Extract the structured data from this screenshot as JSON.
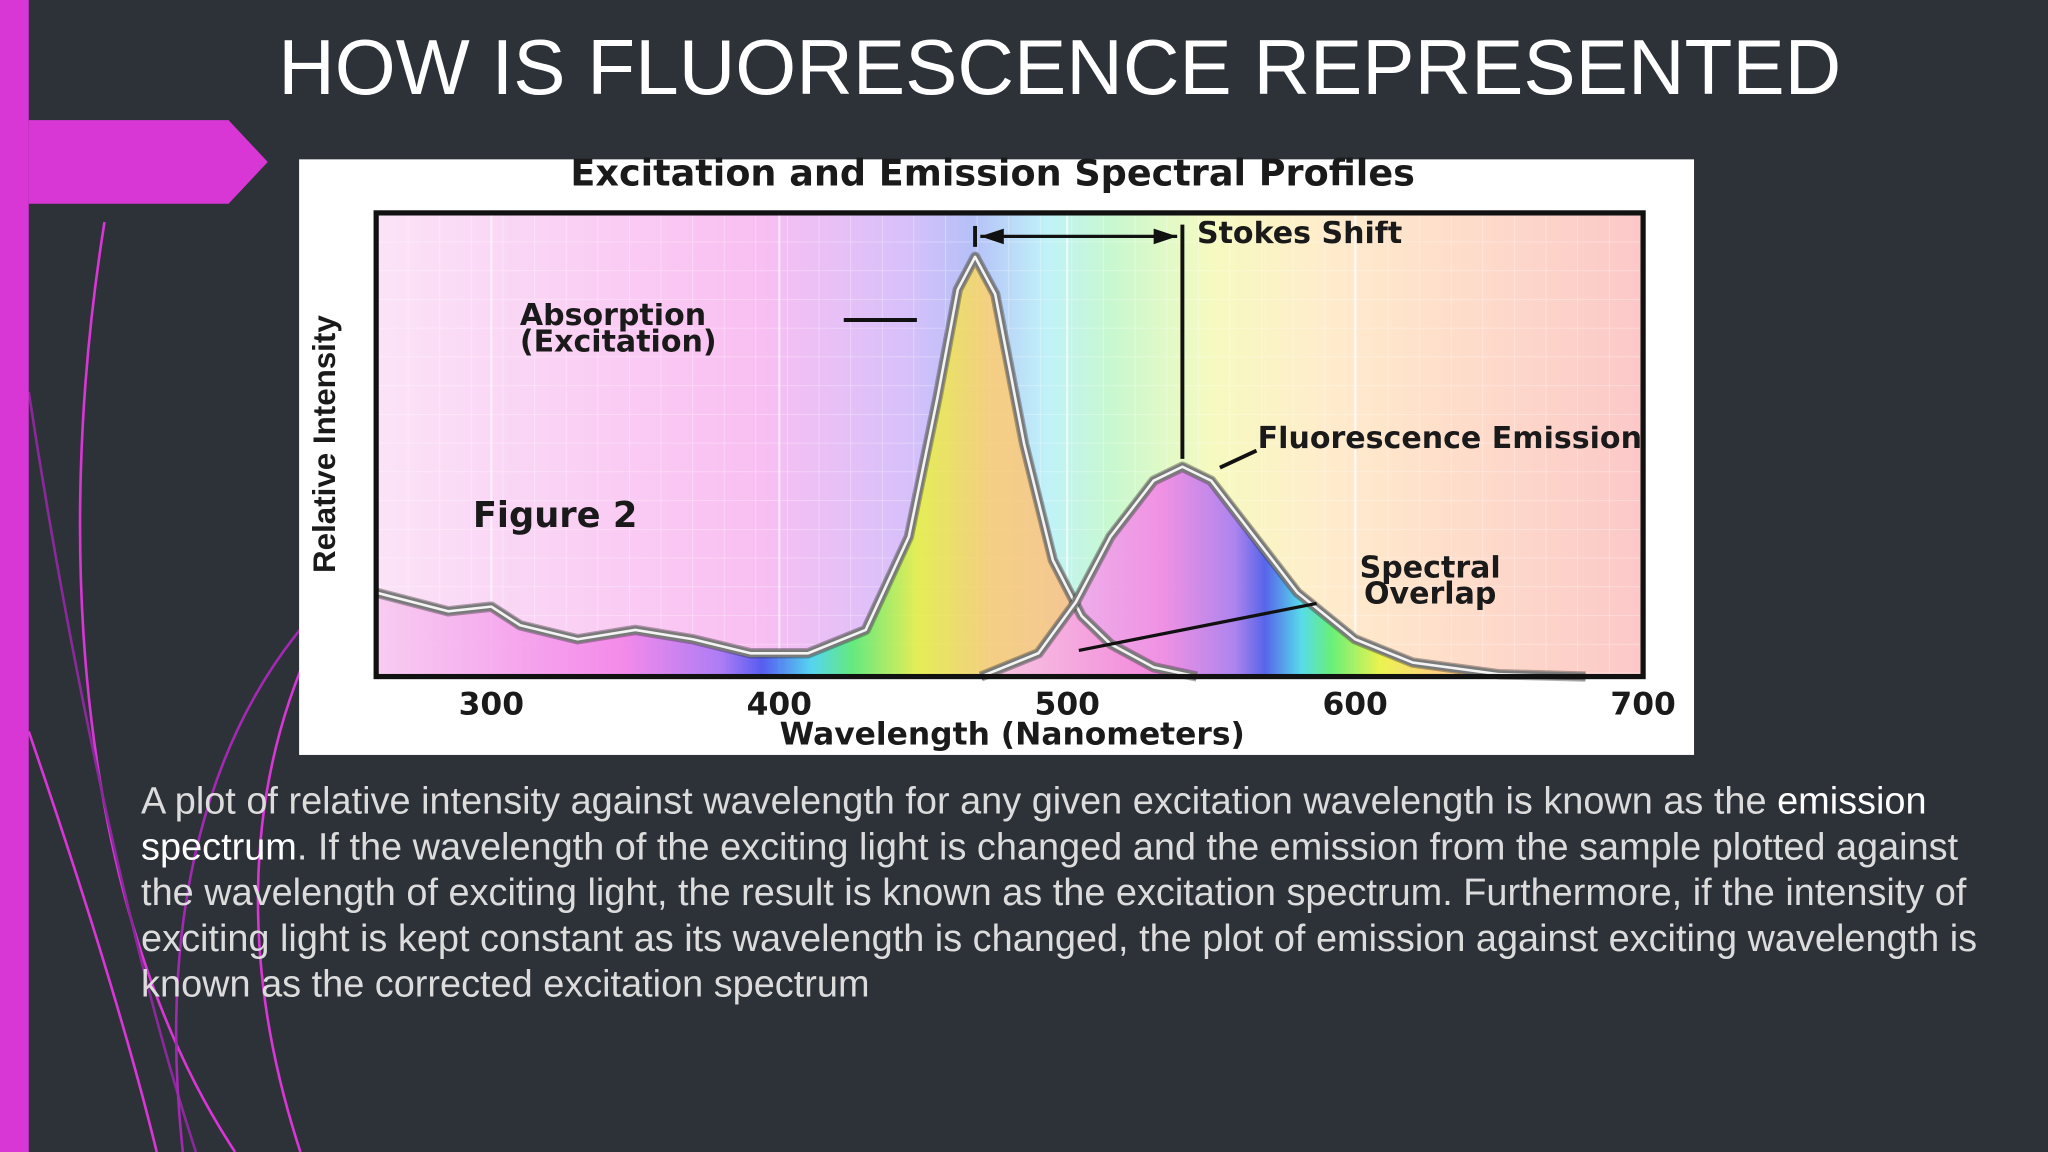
{
  "slide": {
    "title": "HOW IS FLUORESCENCE REPRESENTED",
    "body": [
      "A plot of relative intensity against wavelength for any given excitation wavelength is known as the ",
      "emission spectrum",
      ". If the wavelength of the exciting light is changed and the emission from the sample plotted against the wavelength of exciting light, the result is known as the excitation spectrum. Furthermore, if the intensity of exciting light is kept constant as its wavelength is changed, the plot of emission against exciting wavelength is known as the corrected excitation spectrum"
    ]
  },
  "chart_data": {
    "type": "line",
    "title": "Excitation and Emission Spectral Profiles",
    "x_label": "Wavelength (Nanometers)",
    "y_label": "Relative Intensity",
    "xlim": [
      260,
      700
    ],
    "xticks": [
      300,
      400,
      500,
      600,
      700
    ],
    "ylim": [
      0,
      1
    ],
    "grid": true,
    "annotations": [
      "Stokes Shift",
      "Spectral Overlap",
      "Figure 2"
    ],
    "series": [
      {
        "name": "Absorption (Excitation)",
        "color": "#7a7a7a",
        "x": [
          260,
          285,
          300,
          310,
          330,
          350,
          370,
          390,
          410,
          430,
          445,
          455,
          462,
          468,
          475,
          485,
          495,
          505,
          515,
          530,
          545
        ],
        "values": [
          0.18,
          0.14,
          0.15,
          0.11,
          0.08,
          0.1,
          0.08,
          0.05,
          0.05,
          0.1,
          0.3,
          0.6,
          0.83,
          0.9,
          0.82,
          0.5,
          0.25,
          0.13,
          0.07,
          0.02,
          0
        ]
      },
      {
        "name": "Fluorescence Emission",
        "color": "#7a7a7a",
        "x": [
          470,
          490,
          503,
          515,
          530,
          540,
          550,
          565,
          580,
          600,
          620,
          650,
          680
        ],
        "values": [
          0,
          0.05,
          0.16,
          0.3,
          0.42,
          0.45,
          0.42,
          0.3,
          0.18,
          0.08,
          0.03,
          0.005,
          0
        ]
      }
    ]
  }
}
